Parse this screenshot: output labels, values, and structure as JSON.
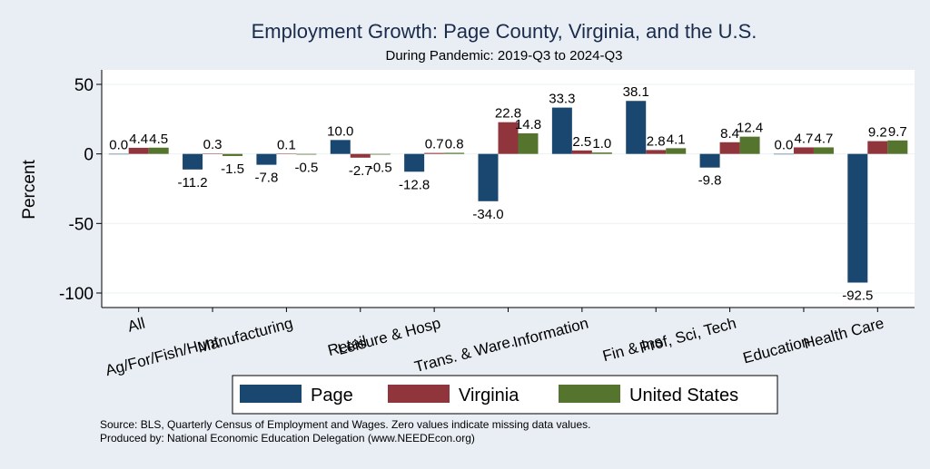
{
  "colors": {
    "background": "#e8eef4",
    "plot_background": "#ffffff",
    "title": "#1a2b4c",
    "page": "#1a476f",
    "virginia": "#90353b",
    "united_states": "#55752f",
    "grid": "#eaf2f3"
  },
  "chart_data": {
    "type": "bar",
    "title": "Employment Growth: Page County, Virginia, and the U.S.",
    "subtitle": "During Pandemic: 2019-Q3 to 2024-Q3",
    "ylabel": "Percent",
    "xlabel": "",
    "ylim": [
      -100,
      50
    ],
    "yticks": [
      50,
      0,
      -50,
      -100
    ],
    "grid": true,
    "legend_position": "bottom",
    "categories": [
      "All",
      "Ag/For/Fish/Hunt",
      "Manufacturing",
      "Retail",
      "Leisure & Hosp",
      "Trans. & Ware.",
      "Information",
      "Fin & Ins",
      "Prof, Sci, Tech",
      "Education",
      "Health Care"
    ],
    "series": [
      {
        "name": "Page",
        "values": [
          0.0,
          -11.2,
          -7.8,
          10.0,
          -12.8,
          -34.0,
          33.3,
          38.1,
          -9.8,
          0.0,
          -92.5
        ],
        "labels": [
          "0.0",
          "-11.2",
          "-7.8",
          "10.0",
          "-12.8",
          "-34.0",
          "33.3",
          "38.1",
          "-9.8",
          "0.0",
          "-92.5"
        ]
      },
      {
        "name": "Virginia",
        "values": [
          4.4,
          0.3,
          0.1,
          -2.7,
          0.7,
          22.8,
          2.5,
          2.8,
          8.4,
          4.7,
          9.2
        ],
        "labels": [
          "4.4",
          "0.3",
          "0.1",
          "-2.7",
          "0.7",
          "22.8",
          "2.5",
          "2.8",
          "8.4",
          "4.7",
          "9.2"
        ]
      },
      {
        "name": "United States",
        "values": [
          4.5,
          -1.5,
          -0.5,
          -0.5,
          0.8,
          14.8,
          1.0,
          4.1,
          12.4,
          4.7,
          9.7
        ],
        "labels": [
          "4.5",
          "-1.5",
          "-0.5",
          "-0.5",
          "0.8",
          "14.8",
          "1.0",
          "4.1",
          "12.4",
          "4.7",
          "9.7"
        ]
      }
    ]
  },
  "footer": {
    "source": "Source: BLS, Quarterly Census of Employment and Wages. Zero values indicate missing data values.",
    "produced": "Produced by: National Economic Education Delegation (www.NEEDEcon.org)"
  }
}
